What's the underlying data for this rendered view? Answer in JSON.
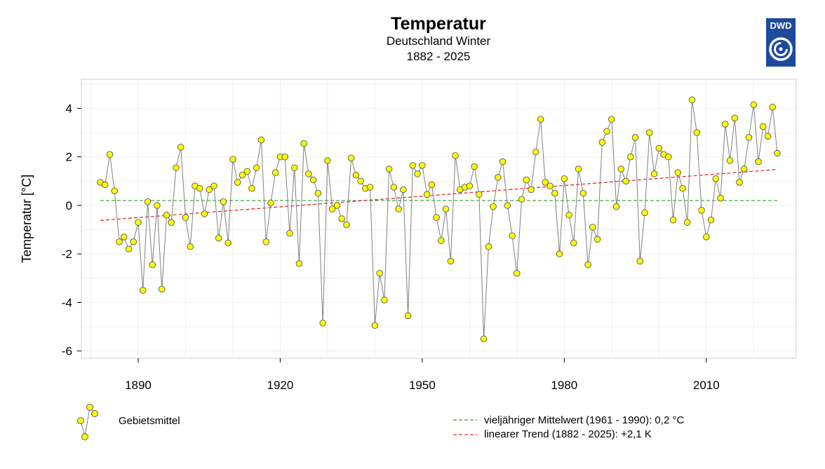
{
  "header": {
    "title": "Temperatur",
    "subtitle": "Deutschland Winter",
    "years": "1882 - 2025"
  },
  "logo": {
    "text": "DWD",
    "color": "#1e4a9c"
  },
  "legend": {
    "series_label": "Gebietsmittel",
    "mean_label": "vieljähriger Mittelwert (1961 - 1990): 0,2 °C",
    "trend_label": "linearer Trend (1882 - 2025): +2,1 K"
  },
  "chart_data": {
    "type": "line",
    "title": "Temperatur",
    "subtitle": "Deutschland Winter 1882 - 2025",
    "xlabel": "",
    "ylabel": "Temperatur [°C]",
    "xlim": [
      1878,
      2029
    ],
    "ylim": [
      -6.3,
      5.2
    ],
    "xticks": [
      1890,
      1920,
      1950,
      1980,
      2010
    ],
    "yticks": [
      -6,
      -4,
      -2,
      0,
      2,
      4
    ],
    "grid": true,
    "colors": {
      "marker_fill": "#ffff00",
      "line": "#808080",
      "mean": "#2ca02c",
      "trend": "#e03030"
    },
    "series": [
      {
        "name": "Gebietsmittel",
        "x_start": 1882,
        "values": [
          0.95,
          0.85,
          2.1,
          0.6,
          -1.5,
          -1.3,
          -1.8,
          -1.5,
          -0.7,
          -3.5,
          0.15,
          -2.45,
          0.0,
          -3.45,
          -0.4,
          -0.7,
          1.55,
          2.4,
          -0.5,
          -1.7,
          0.8,
          0.7,
          -0.35,
          0.65,
          0.8,
          -1.35,
          0.15,
          -1.55,
          1.9,
          0.95,
          1.25,
          1.4,
          0.7,
          1.55,
          2.7,
          -1.5,
          0.1,
          1.35,
          2.0,
          2.0,
          -1.15,
          1.55,
          -2.4,
          2.55,
          1.3,
          1.05,
          0.5,
          -4.85,
          1.85,
          -0.15,
          0.0,
          -0.55,
          -0.8,
          1.95,
          1.25,
          1.0,
          0.7,
          0.75,
          -4.95,
          -2.8,
          -3.9,
          1.5,
          0.75,
          -0.15,
          0.65,
          -4.55,
          1.65,
          1.3,
          1.65,
          0.45,
          0.85,
          -0.5,
          -1.45,
          -0.15,
          -2.3,
          2.05,
          0.65,
          0.75,
          0.8,
          1.6,
          0.45,
          -5.5,
          -1.7,
          -0.05,
          1.15,
          1.8,
          0.0,
          -1.25,
          -2.8,
          0.25,
          1.05,
          0.65,
          2.2,
          3.55,
          0.95,
          0.8,
          0.5,
          -2.0,
          1.1,
          -0.4,
          -1.55,
          1.5,
          0.5,
          -2.45,
          -0.9,
          -1.4,
          2.6,
          3.05,
          3.55,
          -0.05,
          1.5,
          1.0,
          2.0,
          2.8,
          -2.3,
          -0.3,
          3.0,
          1.3,
          2.35,
          2.1,
          2.0,
          -0.6,
          1.35,
          0.7,
          -0.7,
          4.35,
          3.0,
          -0.2,
          -1.3,
          -0.6,
          1.1,
          0.3,
          3.35,
          1.85,
          3.6,
          0.95,
          1.5,
          2.8,
          4.15,
          1.8,
          3.25,
          2.85,
          4.05,
          2.15
        ]
      }
    ],
    "mean": {
      "label": "vieljähriger Mittelwert (1961 - 1990)",
      "value": 0.2
    },
    "trend": {
      "label": "linearer Trend (1882 - 2025)",
      "from": [
        1882,
        -0.62
      ],
      "to": [
        2025,
        1.48
      ]
    }
  }
}
